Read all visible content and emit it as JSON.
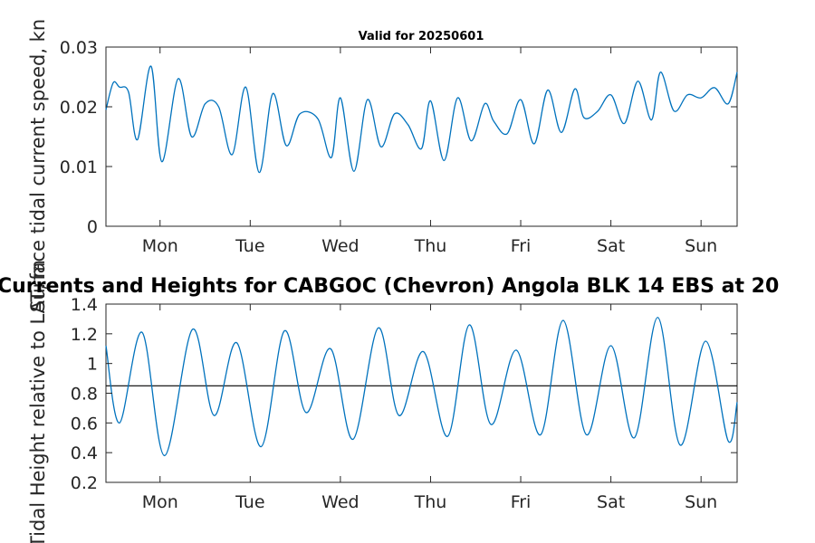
{
  "chart_data": [
    {
      "type": "line",
      "title": "Valid for 20250601",
      "ylabel": "Surface tidal current speed, kn",
      "xlim": [
        0,
        7
      ],
      "ylim": [
        0,
        0.03
      ],
      "yticks": [
        0,
        0.01,
        0.02,
        0.03
      ],
      "ytick_labels": [
        "0",
        "0.01",
        "0.02",
        "0.03"
      ],
      "xticks": [
        0.6,
        1.6,
        2.6,
        3.6,
        4.6,
        5.6,
        6.6
      ],
      "xtick_labels": [
        "Mon",
        "Tue",
        "Wed",
        "Thu",
        "Fri",
        "Sat",
        "Sun"
      ],
      "grid": false,
      "series_color": "#0072BD",
      "series": [
        {
          "x": [
            0,
            0.08,
            0.15,
            0.25,
            0.35,
            0.5,
            0.62,
            0.8,
            0.95,
            1.1,
            1.25,
            1.4,
            1.55,
            1.7,
            1.85,
            2.0,
            2.15,
            2.35,
            2.5,
            2.6,
            2.75,
            2.9,
            3.05,
            3.2,
            3.35,
            3.5,
            3.6,
            3.75,
            3.9,
            4.05,
            4.2,
            4.3,
            4.45,
            4.6,
            4.75,
            4.9,
            5.05,
            5.2,
            5.3,
            5.45,
            5.6,
            5.75,
            5.9,
            6.05,
            6.15,
            6.3,
            6.45,
            6.6,
            6.75,
            6.9,
            7.0
          ],
          "y": [
            0.0195,
            0.024,
            0.0233,
            0.0225,
            0.0145,
            0.0268,
            0.0108,
            0.0247,
            0.015,
            0.0205,
            0.02,
            0.012,
            0.0233,
            0.009,
            0.0222,
            0.0135,
            0.0188,
            0.018,
            0.0115,
            0.0215,
            0.0092,
            0.0212,
            0.0133,
            0.0188,
            0.017,
            0.013,
            0.021,
            0.011,
            0.0215,
            0.0143,
            0.0205,
            0.0176,
            0.0155,
            0.0212,
            0.0138,
            0.0228,
            0.0157,
            0.023,
            0.0182,
            0.0192,
            0.022,
            0.0172,
            0.0243,
            0.0178,
            0.0258,
            0.0193,
            0.022,
            0.0215,
            0.0232,
            0.0205,
            0.0258
          ]
        }
      ]
    },
    {
      "type": "line",
      "title": "Currents and Heights for CABGOC (Chevron)  Angola BLK 14  EBS at 20",
      "ylabel": "Tidal Height relative to LAT, m",
      "xlim": [
        0,
        7
      ],
      "ylim": [
        0.2,
        1.4
      ],
      "yticks": [
        0.2,
        0.4,
        0.6,
        0.8,
        1,
        1.2,
        1.4
      ],
      "ytick_labels": [
        "0.2",
        "0.4",
        "0.6",
        "0.8",
        "1",
        "1.2",
        "1.4"
      ],
      "xticks": [
        0.6,
        1.6,
        2.6,
        3.6,
        4.6,
        5.6,
        6.6
      ],
      "xtick_labels": [
        "Mon",
        "Tue",
        "Wed",
        "Thu",
        "Fri",
        "Sat",
        "Sun"
      ],
      "grid": false,
      "series_color": "#0072BD",
      "reference_line": 0.85,
      "reference_color": "#000000",
      "series": [
        {
          "x": [
            0.0,
            0.15,
            0.4,
            0.65,
            0.96,
            1.2,
            1.45,
            1.72,
            1.98,
            2.22,
            2.49,
            2.74,
            3.02,
            3.25,
            3.52,
            3.79,
            4.03,
            4.27,
            4.55,
            4.82,
            5.07,
            5.33,
            5.6,
            5.86,
            6.12,
            6.37,
            6.65,
            6.9,
            7.0
          ],
          "y": [
            1.12,
            0.6,
            1.21,
            0.38,
            1.23,
            0.65,
            1.14,
            0.44,
            1.22,
            0.67,
            1.1,
            0.49,
            1.24,
            0.65,
            1.08,
            0.51,
            1.26,
            0.59,
            1.09,
            0.52,
            1.29,
            0.52,
            1.12,
            0.5,
            1.31,
            0.45,
            1.15,
            0.48,
            0.74
          ]
        }
      ]
    }
  ]
}
